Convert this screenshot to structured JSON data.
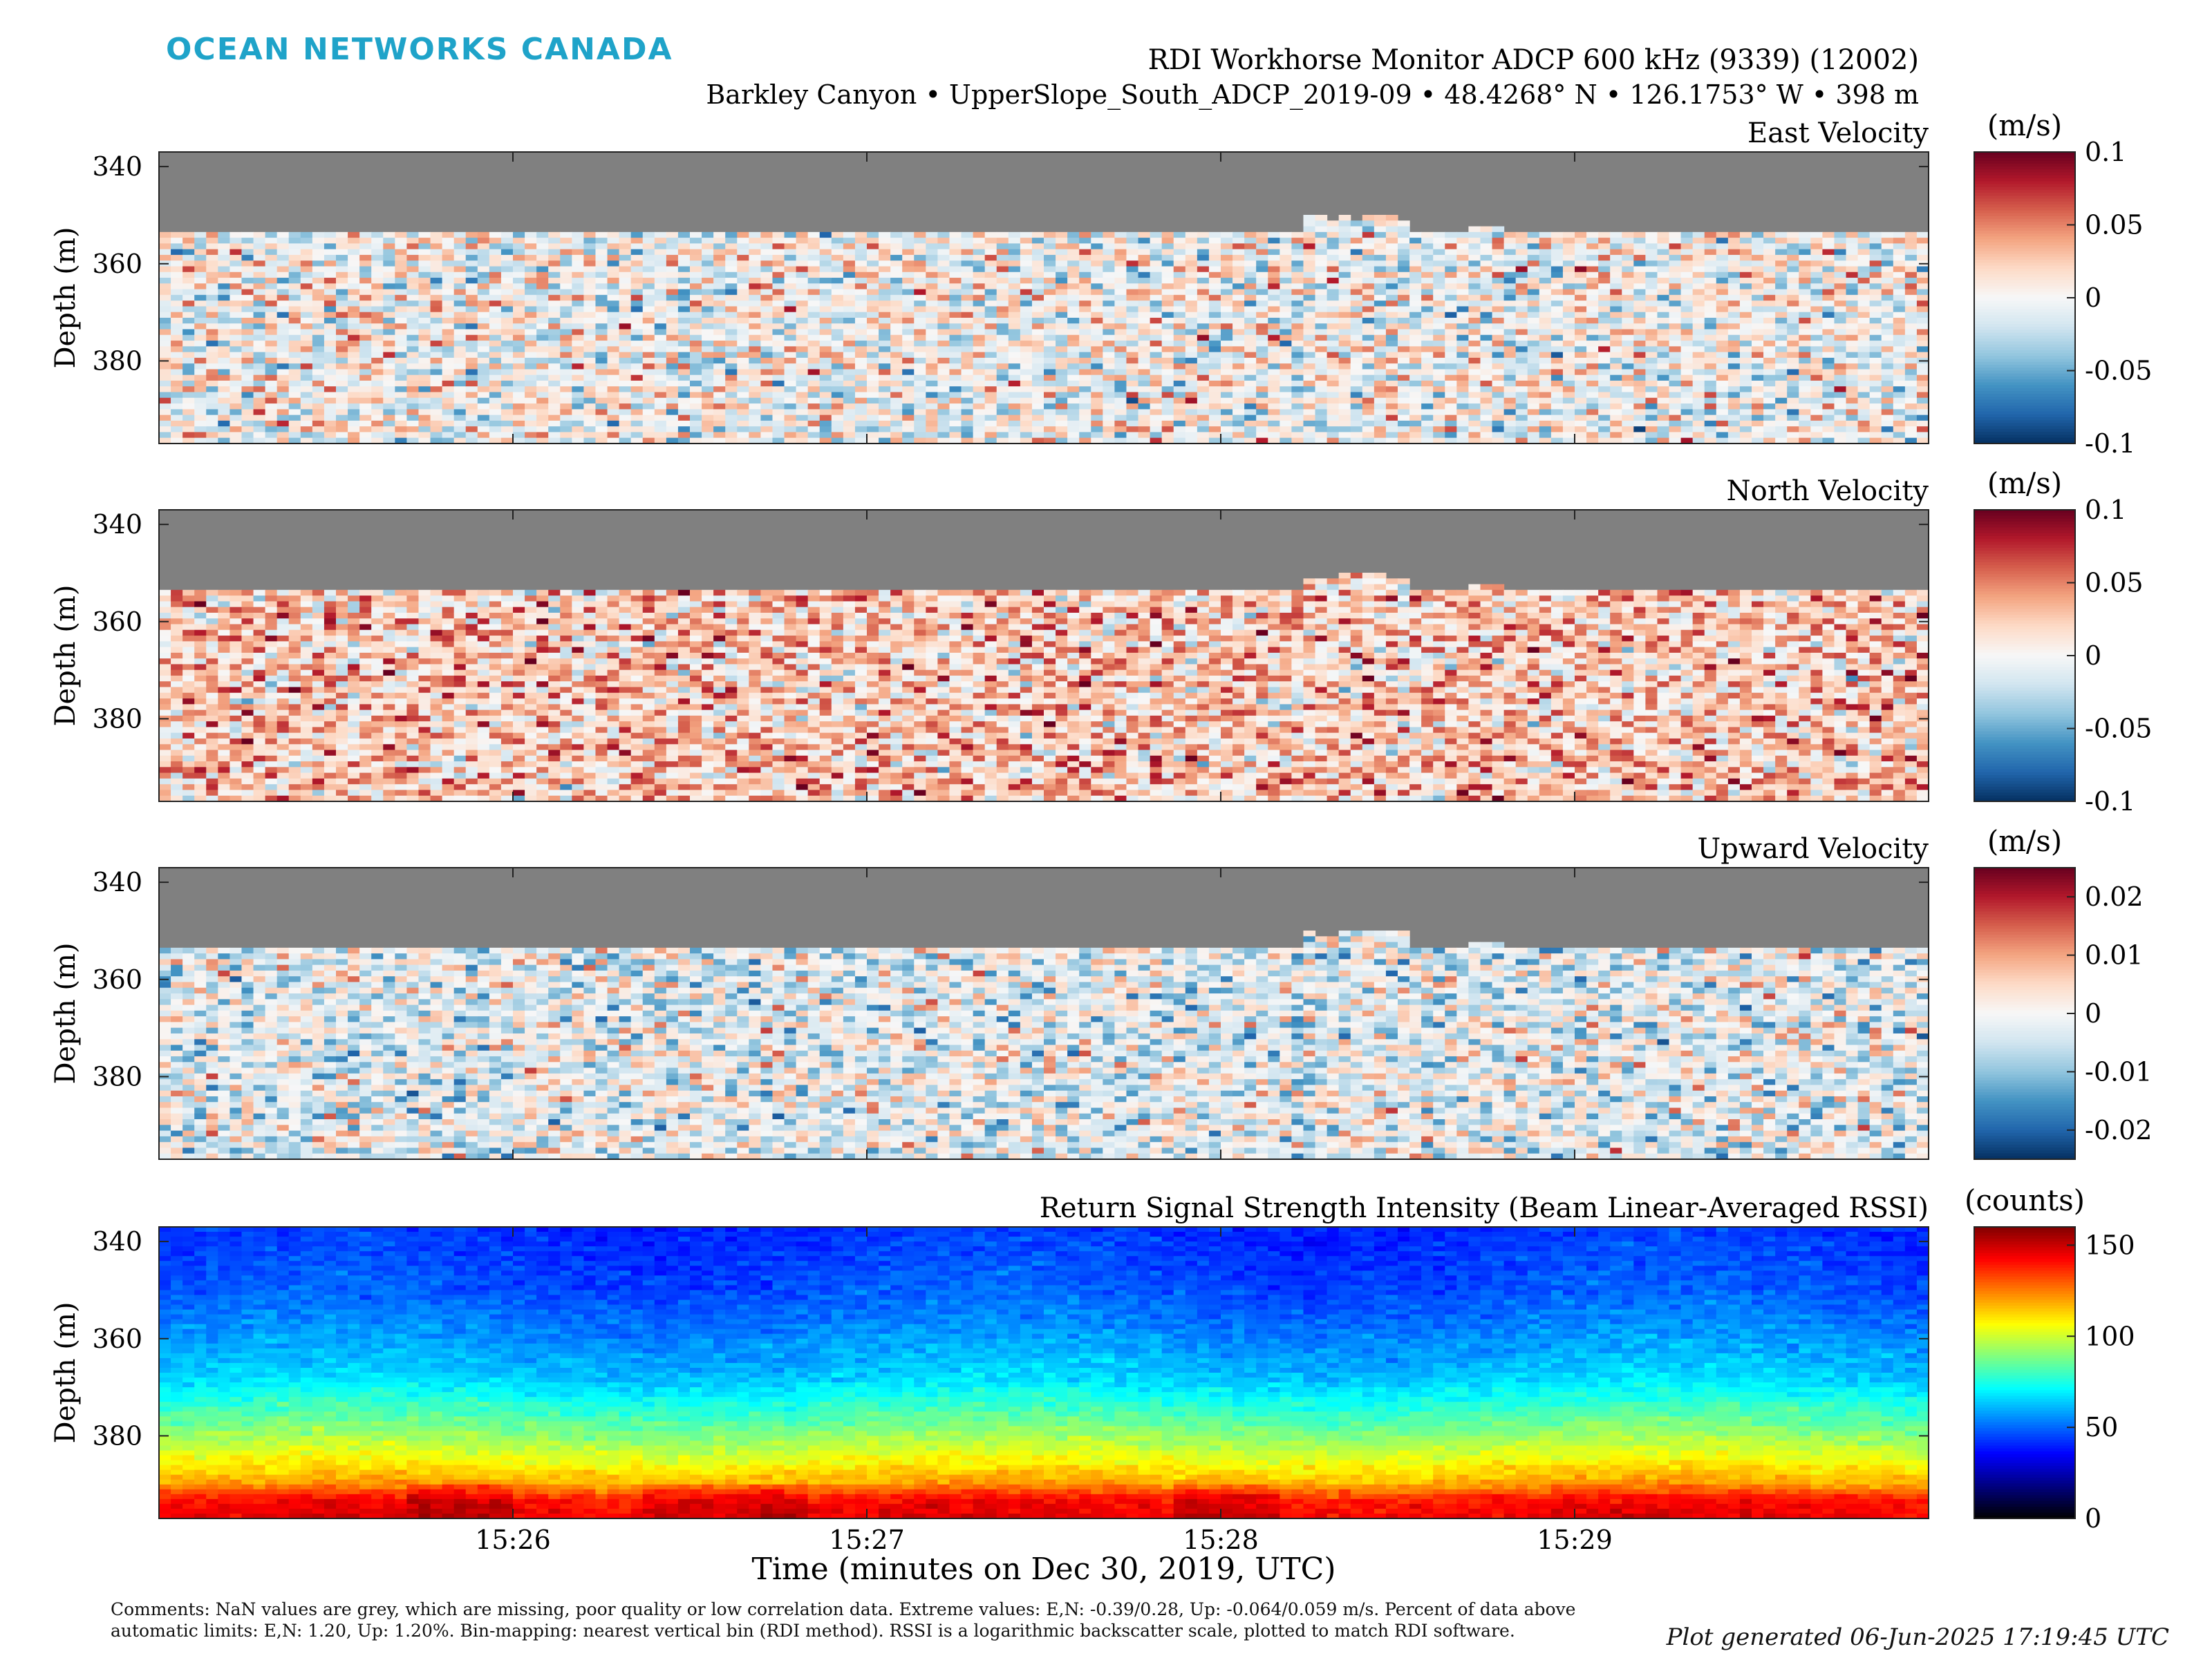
{
  "header": {
    "logo": "OCEAN NETWORKS CANADA",
    "title_line1": "RDI Workhorse Monitor ADCP 600 kHz (9339) (12002)",
    "title_line2": "Barkley Canyon • UpperSlope_South_ADCP_2019-09 • 48.4268° N • 126.1753° W • 398 m"
  },
  "colors": {
    "nan_grey": "#808080",
    "diverging": [
      "#053061",
      "#2166ac",
      "#4393c3",
      "#92c5de",
      "#d1e5f0",
      "#f7f7f7",
      "#fddbc7",
      "#f4a582",
      "#d6604d",
      "#b2182b",
      "#67001f"
    ],
    "jet": [
      "#000000",
      "#000080",
      "#0000ff",
      "#0080ff",
      "#00ffff",
      "#80ff80",
      "#ffff00",
      "#ff8000",
      "#ff0000",
      "#800000"
    ]
  },
  "chart_data": [
    {
      "type": "heatmap",
      "title": "East Velocity",
      "ylabel": "Depth (m)",
      "ylim": [
        397,
        337
      ],
      "yticks": [
        340,
        360,
        380
      ],
      "xlim": [
        "15:25:00",
        "15:30:00"
      ],
      "xticks": [
        "15:26",
        "15:27",
        "15:28",
        "15:29"
      ],
      "colormap": "diverging",
      "colorbar": {
        "label": "(m/s)",
        "range": [
          -0.1,
          0.1
        ],
        "ticks": [
          0.1,
          0.05,
          0,
          -0.05,
          -0.1
        ],
        "ticklabels": [
          "0.1",
          "0.05",
          "0",
          "-0.05",
          "-0.1"
        ]
      },
      "nan_above_depth_m": 354,
      "mean_value": 0.0,
      "spread": 0.05
    },
    {
      "type": "heatmap",
      "title": "North Velocity",
      "ylabel": "Depth (m)",
      "ylim": [
        397,
        337
      ],
      "yticks": [
        340,
        360,
        380
      ],
      "xlim": [
        "15:25:00",
        "15:30:00"
      ],
      "xticks": [
        "15:26",
        "15:27",
        "15:28",
        "15:29"
      ],
      "colormap": "diverging",
      "colorbar": {
        "label": "(m/s)",
        "range": [
          -0.1,
          0.1
        ],
        "ticks": [
          0.1,
          0.05,
          0,
          -0.05,
          -0.1
        ],
        "ticklabels": [
          "0.1",
          "0.05",
          "0",
          "-0.05",
          "-0.1"
        ]
      },
      "nan_above_depth_m": 354,
      "mean_value": 0.025,
      "spread": 0.05
    },
    {
      "type": "heatmap",
      "title": "Upward Velocity",
      "ylabel": "Depth (m)",
      "ylim": [
        397,
        337
      ],
      "yticks": [
        340,
        360,
        380
      ],
      "xlim": [
        "15:25:00",
        "15:30:00"
      ],
      "xticks": [
        "15:26",
        "15:27",
        "15:28",
        "15:29"
      ],
      "colormap": "diverging",
      "colorbar": {
        "label": "(m/s)",
        "range": [
          -0.025,
          0.025
        ],
        "ticks": [
          0.02,
          0.01,
          0,
          -0.01,
          -0.02
        ],
        "ticklabels": [
          "0.02",
          "0.01",
          "0",
          "-0.01",
          "-0.02"
        ]
      },
      "nan_above_depth_m": 354,
      "mean_value": -0.002,
      "spread": 0.012
    },
    {
      "type": "heatmap",
      "title": "Return Signal Strength Intensity (Beam Linear-Averaged RSSI)",
      "ylabel": "Depth (m)",
      "xlabel": "Time (minutes on Dec 30, 2019, UTC)",
      "ylim": [
        397,
        337
      ],
      "yticks": [
        340,
        360,
        380
      ],
      "xlim": [
        "15:25:00",
        "15:30:00"
      ],
      "xticks": [
        "15:26",
        "15:27",
        "15:28",
        "15:29"
      ],
      "colormap": "jet",
      "colorbar": {
        "label": "(counts)",
        "range": [
          0,
          160
        ],
        "ticks": [
          150,
          100,
          50,
          0
        ],
        "ticklabels": [
          "150",
          "100",
          "50",
          "0"
        ]
      },
      "profile_depth_m": [
        337,
        350,
        360,
        368,
        375,
        380,
        385,
        390,
        393,
        397
      ],
      "profile_counts": [
        42,
        47,
        56,
        64,
        80,
        92,
        105,
        120,
        140,
        145
      ]
    }
  ],
  "footer": {
    "comments": "Comments: NaN values are grey, which are missing, poor quality or low correlation data. Extreme values: E,N: -0.39/0.28, Up: -0.064/0.059 m/s. Percent of data above automatic limits: E,N: 1.20, Up: 1.20%. Bin-mapping: nearest vertical bin (RDI method). RSSI is a logarithmic backscatter scale, plotted to match RDI software.",
    "generated": "Plot generated 06-Jun-2025 17:19:45 UTC"
  }
}
